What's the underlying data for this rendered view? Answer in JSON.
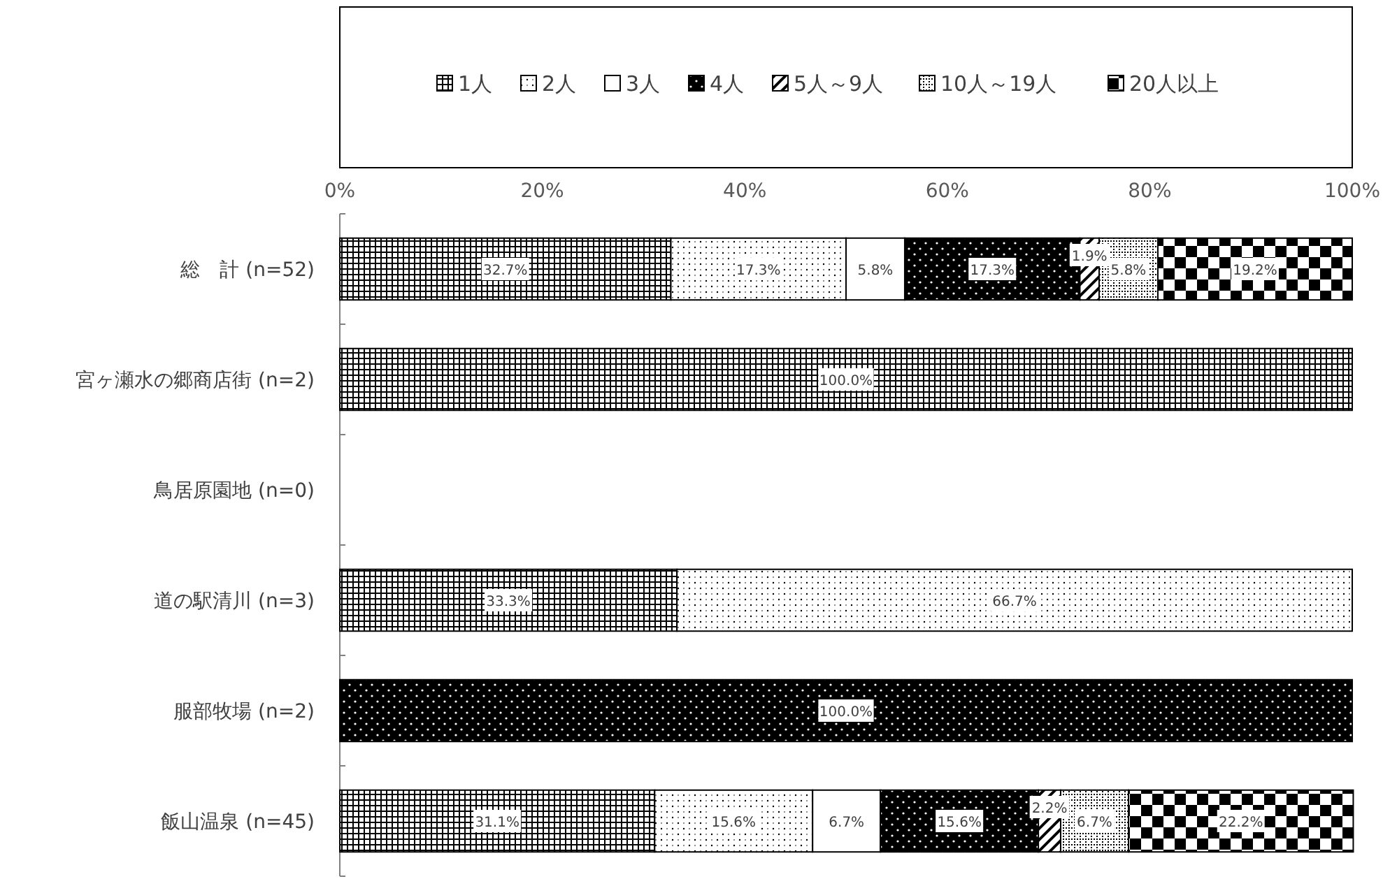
{
  "chart_data": {
    "type": "bar",
    "orientation": "horizontal",
    "stacked": true,
    "legend": "top",
    "categories": [
      "総　計 (n=52)",
      "宮ヶ瀬水の郷商店街 (n=2)",
      "鳥居原園地 (n=0)",
      "道の駅清川 (n=3)",
      "服部牧場 (n=2)",
      "飯山温泉 (n=45)"
    ],
    "xlim": [
      0,
      100
    ],
    "xticks": [
      {
        "value": 0,
        "label": "0%"
      },
      {
        "value": 20,
        "label": "20%"
      },
      {
        "value": 40,
        "label": "40%"
      },
      {
        "value": 60,
        "label": "60%"
      },
      {
        "value": 80,
        "label": "80%"
      },
      {
        "value": 100,
        "label": "100%"
      }
    ],
    "series": [
      {
        "name": "1人",
        "color": "#000000",
        "values": [
          32.7,
          100,
          null,
          33.3,
          null,
          31.1
        ],
        "value_labels": [
          "32.7%",
          "100.0%",
          null,
          "33.3%",
          null,
          "31.1%"
        ]
      },
      {
        "name": "2人",
        "color": "#000000",
        "values": [
          17.3,
          null,
          null,
          66.7,
          null,
          15.6
        ],
        "value_labels": [
          "17.3%",
          null,
          null,
          "66.7%",
          null,
          "15.6%"
        ]
      },
      {
        "name": "3人",
        "color": "#000000",
        "values": [
          5.8,
          null,
          null,
          null,
          null,
          6.7
        ],
        "value_labels": [
          "5.8%",
          null,
          null,
          null,
          null,
          "6.7%"
        ]
      },
      {
        "name": "4人",
        "color": "#000000",
        "values": [
          17.3,
          null,
          null,
          null,
          100,
          15.6
        ],
        "value_labels": [
          "17.3%",
          null,
          null,
          null,
          "100.0%",
          "15.6%"
        ]
      },
      {
        "name": "5人～9人",
        "color": "#000000",
        "values": [
          1.9,
          null,
          null,
          null,
          null,
          2.2
        ],
        "value_labels": [
          "1.9%",
          null,
          null,
          null,
          null,
          "2.2%"
        ]
      },
      {
        "name": "10人～19人",
        "color": "#000000",
        "values": [
          5.8,
          null,
          null,
          null,
          null,
          6.7
        ],
        "value_labels": [
          "5.8%",
          null,
          null,
          null,
          null,
          "6.7%"
        ]
      },
      {
        "name": "20人以上",
        "color": "#000000",
        "values": [
          19.2,
          null,
          null,
          null,
          null,
          22.2
        ],
        "value_labels": [
          "19.2%",
          null,
          null,
          null,
          null,
          "22.2%"
        ]
      }
    ]
  }
}
